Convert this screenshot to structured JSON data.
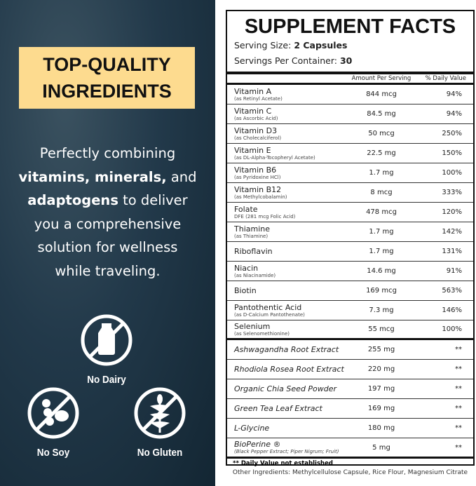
{
  "left": {
    "badge": [
      "TOP-QUALITY",
      "INGREDIENTS"
    ],
    "badge_color": "#fddb8f",
    "description": {
      "p1": "Perfectly combining",
      "b1": "vitamins, minerals,",
      "p2": " and",
      "b2": "adaptogens",
      "p3": " to deliver",
      "p4": "you a comprehensive",
      "p5": "solution for wellness",
      "p6": "while traveling."
    },
    "icons": [
      {
        "icon": "no-dairy-icon",
        "label": "No Dairy"
      },
      {
        "icon": "no-soy-icon",
        "label": "No Soy"
      },
      {
        "icon": "no-gluten-icon",
        "label": "No Gluten"
      }
    ]
  },
  "facts": {
    "title": "SUPPLEMENT FACTS",
    "serving_size_label": "Serving Size:",
    "serving_size": "2 Capsules",
    "servings_label": "Servings Per Container:",
    "servings": "30",
    "col_amount": "Amount Per Serving",
    "col_dv": "% Daily Value",
    "vitamins": [
      {
        "name": "Vitamin A",
        "sub": "(as Retinyl Acetate)",
        "amount": "844 mcg",
        "dv": "94%"
      },
      {
        "name": "Vitamin C",
        "sub": "(as Ascorbic Acid)",
        "amount": "84.5 mg",
        "dv": "94%"
      },
      {
        "name": "Vitamin D3",
        "sub": "(as Cholecalciferol)",
        "amount": "50 mcg",
        "dv": "250%"
      },
      {
        "name": "Vitamin E",
        "sub": "(as DL-Alpha-Tocopheryl Acetate)",
        "amount": "22.5 mg",
        "dv": "150%"
      },
      {
        "name": "Vitamin B6",
        "sub": "(as Pyridoxine HCl)",
        "amount": "1.7 mg",
        "dv": "100%"
      },
      {
        "name": "Vitamin B12",
        "sub": "(as Methylcobalamin)",
        "amount": "8 mcg",
        "dv": "333%"
      },
      {
        "name": "Folate",
        "sub": "DFE (281 mcg Folic Acid)",
        "amount": "478 mcg",
        "dv": "120%"
      },
      {
        "name": "Thiamine",
        "sub": "(as Thiamine)",
        "amount": "1.7 mg",
        "dv": "142%"
      },
      {
        "name": "Riboflavin",
        "sub": "",
        "amount": "1.7 mg",
        "dv": "131%"
      },
      {
        "name": "Niacin",
        "sub": "(as Niacinamide)",
        "amount": "14.6 mg",
        "dv": "91%"
      },
      {
        "name": "Biotin",
        "sub": "",
        "amount": "169 mcg",
        "dv": "563%"
      },
      {
        "name": "Pantothentic Acid",
        "sub": "(as D-Calcium Pantothenate)",
        "amount": "7.3 mg",
        "dv": "146%"
      },
      {
        "name": "Selenium",
        "sub": "(as Selenomethionine)",
        "amount": "55 mcg",
        "dv": "100%"
      }
    ],
    "others": [
      {
        "name": "Ashwagandha Root Extract",
        "sub": "",
        "amount": "255 mg",
        "dv": "**"
      },
      {
        "name": "Rhodiola Rosea Root Extract",
        "sub": "",
        "amount": "220 mg",
        "dv": "**"
      },
      {
        "name": "Organic Chia Seed Powder",
        "sub": "",
        "amount": "197 mg",
        "dv": "**"
      },
      {
        "name": "Green Tea Leaf Extract",
        "sub": "",
        "amount": "169 mg",
        "dv": "**"
      },
      {
        "name": "L-Glycine",
        "sub": "",
        "amount": "180 mg",
        "dv": "**"
      },
      {
        "name": "BioPerine ®",
        "sub": "(Black Pepper Extract; Piper Nigrum; Fruit)",
        "amount": "5 mg",
        "dv": "**"
      }
    ],
    "footnote": "** Daily Value not established",
    "other_ingredients": "Other Ingredients: Methylcellulose Capsule, Rice Flour, Magnesium Citrate"
  }
}
